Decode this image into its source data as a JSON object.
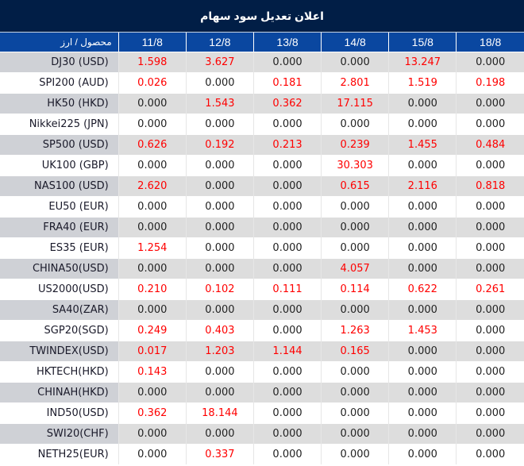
{
  "title": "اعلان تعدیل سود سهام",
  "header": {
    "product_label": "محصول / ارز",
    "dates": [
      "11/8",
      "12/8",
      "13/8",
      "14/8",
      "15/8",
      "18/8"
    ]
  },
  "colors": {
    "title_bg": "#011e46",
    "header_bg": "#0a47a0",
    "nonzero_value": "#ff0000",
    "zero_value": "#222222",
    "stripe_bg": "#dddddd",
    "stripe_first_col_bg": "#cfd1d6"
  },
  "rows": [
    {
      "product": "DJ30 (USD)",
      "values": [
        "1.598",
        "3.627",
        "0.000",
        "0.000",
        "13.247",
        "0.000"
      ]
    },
    {
      "product": "SPI200 (AUD)",
      "values": [
        "0.026",
        "0.000",
        "0.181",
        "2.801",
        "1.519",
        "0.198"
      ]
    },
    {
      "product": "HK50 (HKD)",
      "values": [
        "0.000",
        "1.543",
        "0.362",
        "17.115",
        "0.000",
        "0.000"
      ]
    },
    {
      "product": "Nikkei225 (JPN)",
      "values": [
        "0.000",
        "0.000",
        "0.000",
        "0.000",
        "0.000",
        "0.000"
      ]
    },
    {
      "product": "SP500 (USD)",
      "values": [
        "0.626",
        "0.192",
        "0.213",
        "0.239",
        "1.455",
        "0.484"
      ]
    },
    {
      "product": "UK100 (GBP)",
      "values": [
        "0.000",
        "0.000",
        "0.000",
        "30.303",
        "0.000",
        "0.000"
      ]
    },
    {
      "product": "NAS100 (USD)",
      "values": [
        "2.620",
        "0.000",
        "0.000",
        "0.615",
        "2.116",
        "0.818"
      ]
    },
    {
      "product": "EU50 (EUR)",
      "values": [
        "0.000",
        "0.000",
        "0.000",
        "0.000",
        "0.000",
        "0.000"
      ]
    },
    {
      "product": "FRA40 (EUR)",
      "values": [
        "0.000",
        "0.000",
        "0.000",
        "0.000",
        "0.000",
        "0.000"
      ]
    },
    {
      "product": "ES35 (EUR)",
      "values": [
        "1.254",
        "0.000",
        "0.000",
        "0.000",
        "0.000",
        "0.000"
      ]
    },
    {
      "product": "CHINA50(USD)",
      "values": [
        "0.000",
        "0.000",
        "0.000",
        "4.057",
        "0.000",
        "0.000"
      ]
    },
    {
      "product": "US2000(USD)",
      "values": [
        "0.210",
        "0.102",
        "0.111",
        "0.114",
        "0.622",
        "0.261"
      ]
    },
    {
      "product": "SA40(ZAR)",
      "values": [
        "0.000",
        "0.000",
        "0.000",
        "0.000",
        "0.000",
        "0.000"
      ]
    },
    {
      "product": "SGP20(SGD)",
      "values": [
        "0.249",
        "0.403",
        "0.000",
        "1.263",
        "1.453",
        "0.000"
      ]
    },
    {
      "product": "TWINDEX(USD)",
      "values": [
        "0.017",
        "1.203",
        "1.144",
        "0.165",
        "0.000",
        "0.000"
      ]
    },
    {
      "product": "HKTECH(HKD)",
      "values": [
        "0.143",
        "0.000",
        "0.000",
        "0.000",
        "0.000",
        "0.000"
      ]
    },
    {
      "product": "CHINAH(HKD)",
      "values": [
        "0.000",
        "0.000",
        "0.000",
        "0.000",
        "0.000",
        "0.000"
      ]
    },
    {
      "product": "IND50(USD)",
      "values": [
        "0.362",
        "18.144",
        "0.000",
        "0.000",
        "0.000",
        "0.000"
      ]
    },
    {
      "product": "SWI20(CHF)",
      "values": [
        "0.000",
        "0.000",
        "0.000",
        "0.000",
        "0.000",
        "0.000"
      ]
    },
    {
      "product": "NETH25(EUR)",
      "values": [
        "0.000",
        "0.337",
        "0.000",
        "0.000",
        "0.000",
        "0.000"
      ]
    }
  ]
}
